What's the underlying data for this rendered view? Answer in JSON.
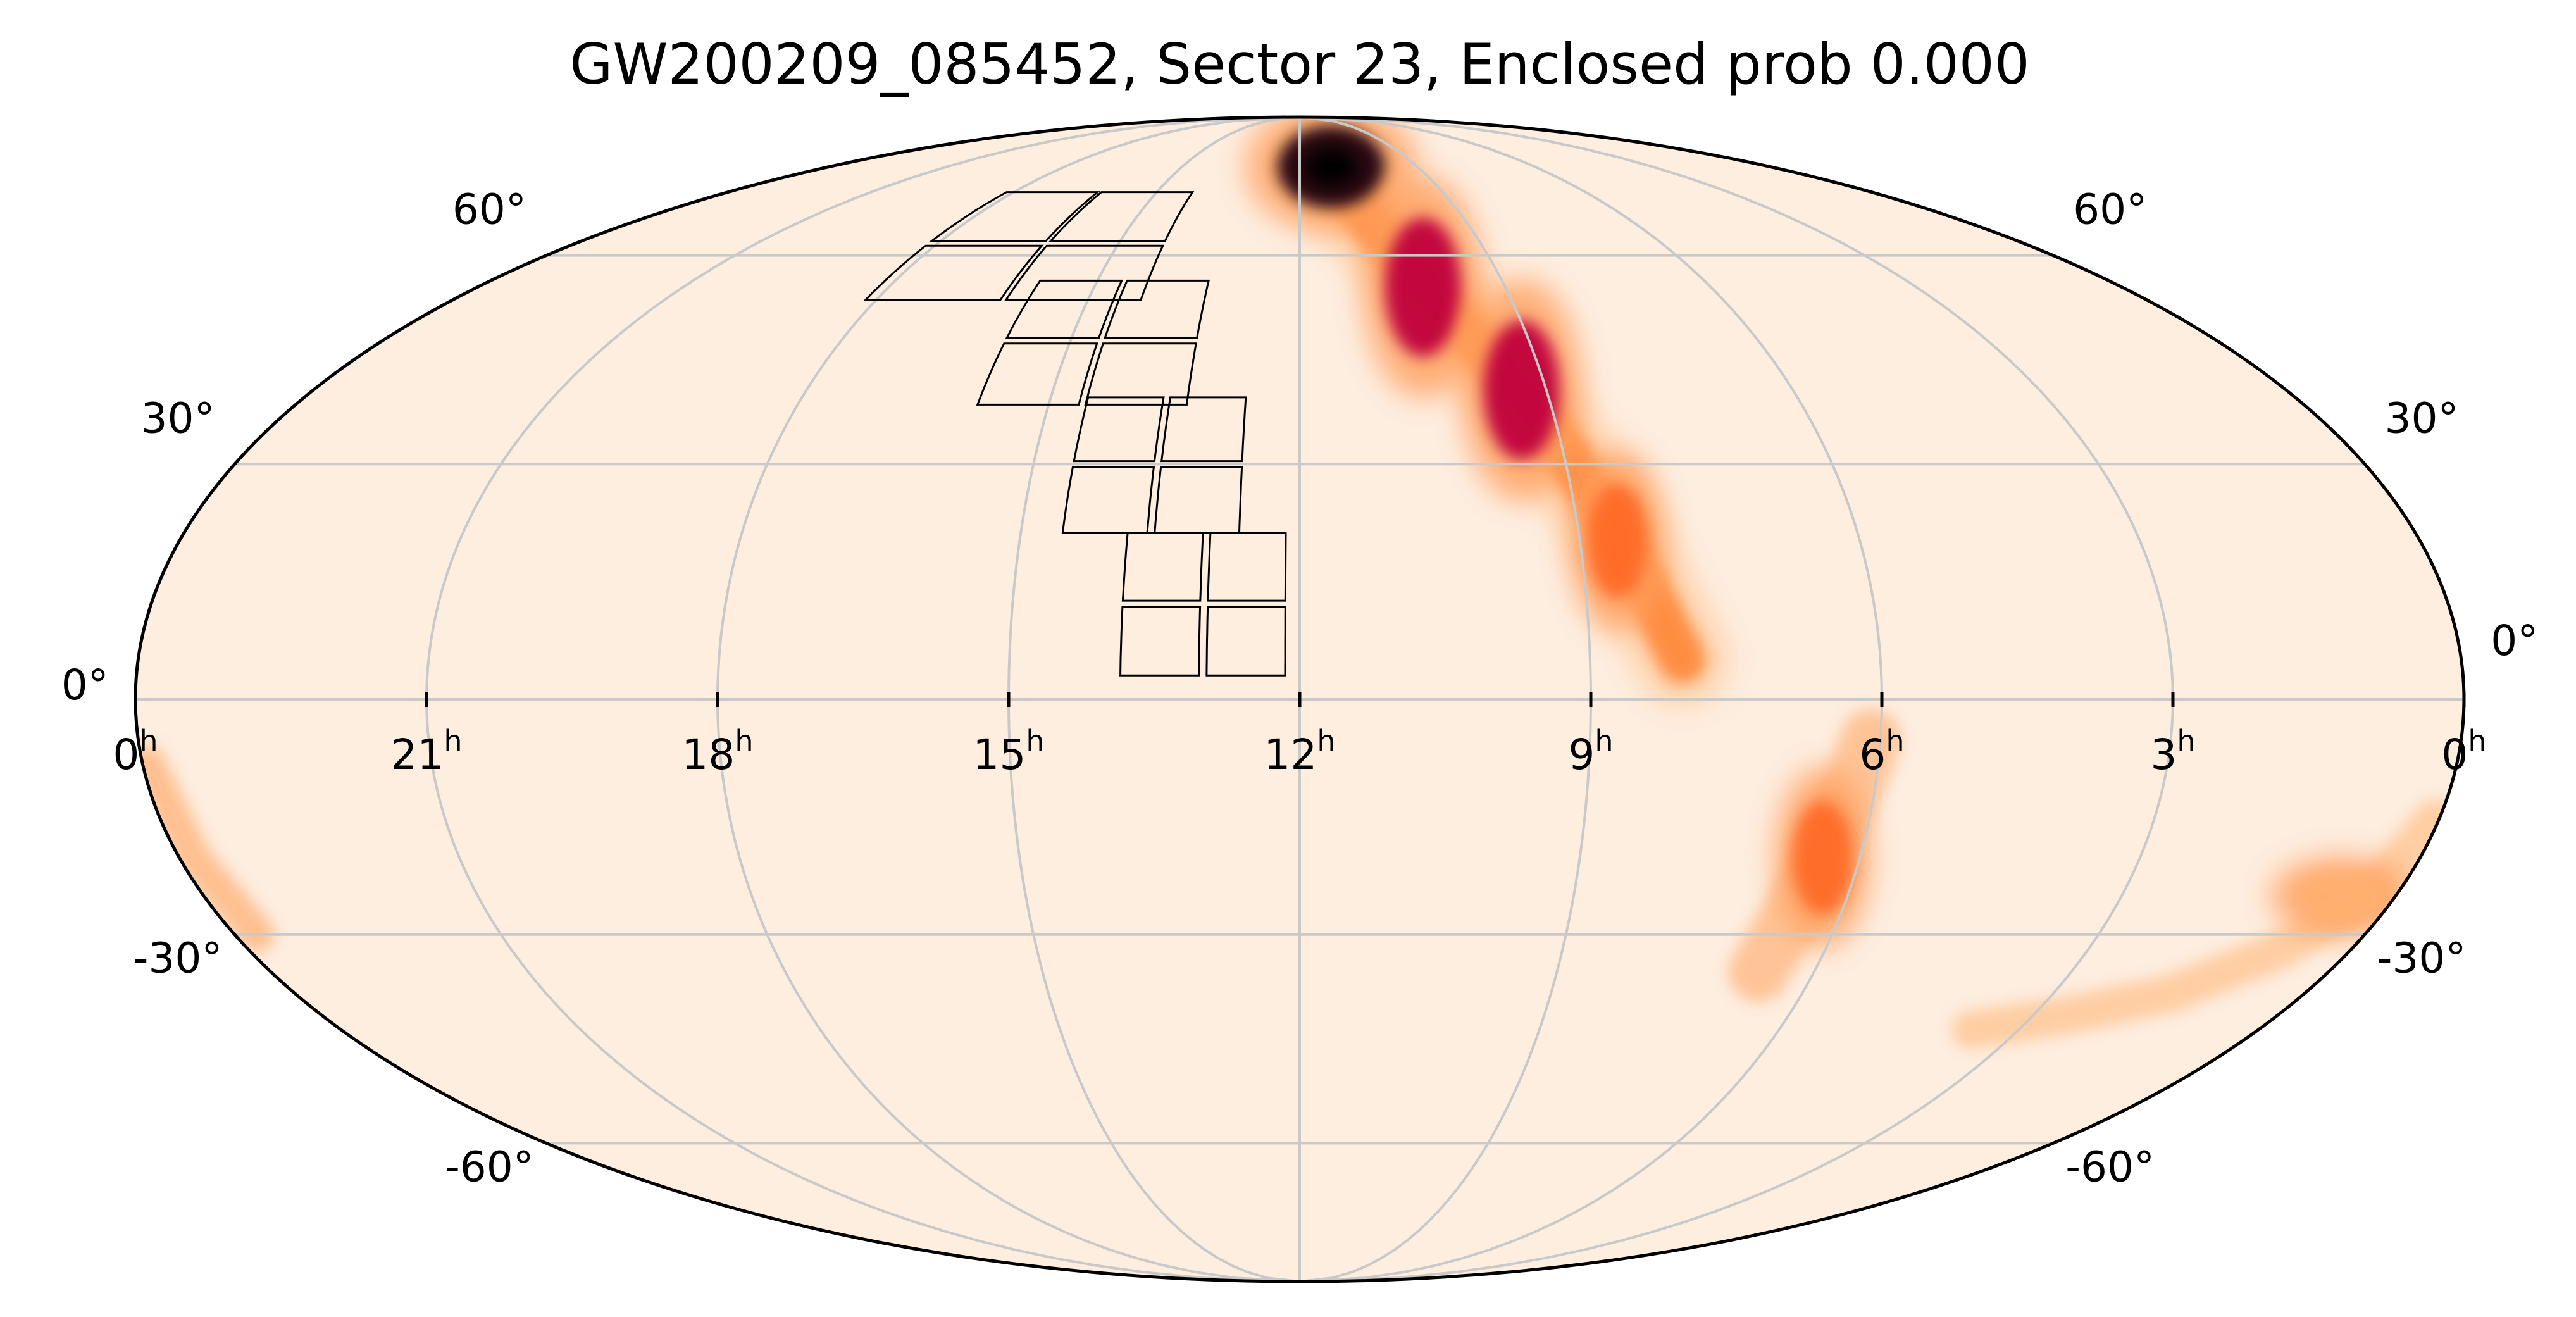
{
  "chart_data": {
    "type": "heatmap",
    "projection": "mollweide",
    "title": "GW200209_085452, Sector 23, Enclosed prob 0.000",
    "colormap": "white-orange-red-black (probability density)",
    "background_color": "#fdeee0",
    "grid": true,
    "ra_ticks": [
      {
        "hours": 0,
        "label": "0",
        "unit": "h"
      },
      {
        "hours": 21,
        "label": "21",
        "unit": "h"
      },
      {
        "hours": 18,
        "label": "18",
        "unit": "h"
      },
      {
        "hours": 15,
        "label": "15",
        "unit": "h"
      },
      {
        "hours": 12,
        "label": "12",
        "unit": "h"
      },
      {
        "hours": 9,
        "label": "9",
        "unit": "h"
      },
      {
        "hours": 6,
        "label": "6",
        "unit": "h"
      },
      {
        "hours": 3,
        "label": "3",
        "unit": "h"
      },
      {
        "hours": 0,
        "label": "0",
        "unit": "h",
        "side": "right"
      }
    ],
    "dec_ticks": [
      {
        "deg": 60,
        "label": "60°"
      },
      {
        "deg": 30,
        "label": "30°"
      },
      {
        "deg": 0,
        "label": "0°"
      },
      {
        "deg": -30,
        "label": "-30°"
      },
      {
        "deg": -60,
        "label": "-60°"
      }
    ],
    "probability_regions": [
      {
        "ra_hours": 11.2,
        "dec_deg": 76,
        "level": "peak"
      },
      {
        "ra_hours": 10.2,
        "dec_deg": 55,
        "level": "high"
      },
      {
        "ra_hours": 9.3,
        "dec_deg": 40,
        "level": "high"
      },
      {
        "ra_hours": 8.6,
        "dec_deg": 20,
        "level": "medium"
      },
      {
        "ra_hours": 6.4,
        "dec_deg": -20,
        "level": "medium"
      },
      {
        "ra_hours": 0.6,
        "dec_deg": -25,
        "level": "low"
      }
    ],
    "tess_footprint": {
      "sector": 23,
      "cameras": 4,
      "ccds_per_camera": 4,
      "ra_center_range_hours": [
        13.0,
        18.0
      ],
      "dec_center_range_deg": [
        5,
        65
      ]
    }
  }
}
